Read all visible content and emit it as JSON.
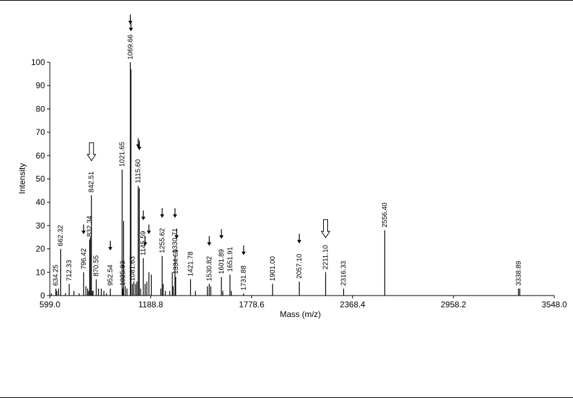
{
  "chart_data": {
    "type": "bar",
    "title": "",
    "xlabel": "Mass (m/z)",
    "ylabel": "Intensity",
    "xlim": [
      599.0,
      3548.0
    ],
    "ylim": [
      0,
      100
    ],
    "x_ticks": [
      "599.0",
      "1188.8",
      "1778.6",
      "2368.4",
      "2958.2",
      "3548.0"
    ],
    "y_ticks": [
      "0",
      "10",
      "20",
      "30",
      "40",
      "50",
      "60",
      "70",
      "80",
      "90",
      "100"
    ],
    "labeled_peaks": [
      {
        "mz": 634.25,
        "label": "634.25",
        "intensity": 3
      },
      {
        "mz": 662.32,
        "label": "662.32",
        "intensity": 20
      },
      {
        "mz": 712.33,
        "label": "712.33",
        "intensity": 5
      },
      {
        "mz": 796.42,
        "label": "796.42",
        "intensity": 10
      },
      {
        "mz": 832.34,
        "label": "832.34",
        "intensity": 24
      },
      {
        "mz": 842.51,
        "label": "842.51",
        "intensity": 43
      },
      {
        "mz": 870.55,
        "label": "870.55",
        "intensity": 7
      },
      {
        "mz": 952.54,
        "label": "952.54",
        "intensity": 3
      },
      {
        "mz": 1021.65,
        "label": "1021.65",
        "intensity": 54
      },
      {
        "mz": 1025.93,
        "label": "1025.93",
        "intensity": 3
      },
      {
        "mz": 1069.66,
        "label": "1069.66",
        "intensity": 100
      },
      {
        "mz": 1081.63,
        "label": "1081.63",
        "intensity": 5
      },
      {
        "mz": 1115.6,
        "label": "1115.60",
        "intensity": 47
      },
      {
        "mz": 1145.59,
        "label": "1145.59",
        "intensity": 16
      },
      {
        "mz": 1255.62,
        "label": "1255.62",
        "intensity": 17
      },
      {
        "mz": 1330.71,
        "label": "1330.71",
        "intensity": 17
      },
      {
        "mz": 1334.69,
        "label": "1334.69",
        "intensity": 8
      },
      {
        "mz": 1421.78,
        "label": "1421.78",
        "intensity": 7
      },
      {
        "mz": 1530.82,
        "label": "1530.82",
        "intensity": 5
      },
      {
        "mz": 1601.89,
        "label": "1601.89",
        "intensity": 8
      },
      {
        "mz": 1651.91,
        "label": "1651.91",
        "intensity": 9
      },
      {
        "mz": 1731.88,
        "label": "1731.88",
        "intensity": 1
      },
      {
        "mz": 1901.0,
        "label": "1901.00",
        "intensity": 5
      },
      {
        "mz": 2057.1,
        "label": "2057.10",
        "intensity": 6
      },
      {
        "mz": 2211.1,
        "label": "2211.10",
        "intensity": 10
      },
      {
        "mz": 2316.33,
        "label": "2316.33",
        "intensity": 3
      },
      {
        "mz": 2556.4,
        "label": "2556.40",
        "intensity": 28
      },
      {
        "mz": 3338.89,
        "label": "3338.89",
        "intensity": 3
      }
    ],
    "unlabeled_peaks": [
      {
        "mz": 608,
        "intensity": 1
      },
      {
        "mz": 640,
        "intensity": 2
      },
      {
        "mz": 650,
        "intensity": 3
      },
      {
        "mz": 690,
        "intensity": 1
      },
      {
        "mz": 740,
        "intensity": 2
      },
      {
        "mz": 770,
        "intensity": 1
      },
      {
        "mz": 810,
        "intensity": 4
      },
      {
        "mz": 820,
        "intensity": 3
      },
      {
        "mz": 826,
        "intensity": 2
      },
      {
        "mz": 836,
        "intensity": 25
      },
      {
        "mz": 846,
        "intensity": 2
      },
      {
        "mz": 852,
        "intensity": 2
      },
      {
        "mz": 884,
        "intensity": 3
      },
      {
        "mz": 900,
        "intensity": 3
      },
      {
        "mz": 915,
        "intensity": 2
      },
      {
        "mz": 930,
        "intensity": 1
      },
      {
        "mz": 1030,
        "intensity": 32
      },
      {
        "mz": 1040,
        "intensity": 4
      },
      {
        "mz": 1050,
        "intensity": 3
      },
      {
        "mz": 1073,
        "intensity": 97
      },
      {
        "mz": 1090,
        "intensity": 6
      },
      {
        "mz": 1100,
        "intensity": 5
      },
      {
        "mz": 1108,
        "intensity": 6
      },
      {
        "mz": 1122,
        "intensity": 46
      },
      {
        "mz": 1130,
        "intensity": 3
      },
      {
        "mz": 1156,
        "intensity": 5
      },
      {
        "mz": 1166,
        "intensity": 6
      },
      {
        "mz": 1178,
        "intensity": 10
      },
      {
        "mz": 1192,
        "intensity": 9
      },
      {
        "mz": 1248,
        "intensity": 3
      },
      {
        "mz": 1262,
        "intensity": 5
      },
      {
        "mz": 1275,
        "intensity": 2
      },
      {
        "mz": 1300,
        "intensity": 2
      },
      {
        "mz": 1315,
        "intensity": 10
      },
      {
        "mz": 1320,
        "intensity": 4
      },
      {
        "mz": 1450,
        "intensity": 2
      },
      {
        "mz": 1520,
        "intensity": 4
      },
      {
        "mz": 1540,
        "intensity": 4
      },
      {
        "mz": 1610,
        "intensity": 2
      },
      {
        "mz": 1660,
        "intensity": 2
      },
      {
        "mz": 3346,
        "intensity": 3
      }
    ],
    "filled_arrow_markers": [
      796.42,
      952.54,
      1069.66,
      1073,
      1115.6,
      1122,
      1145.59,
      1156,
      1178,
      1255.62,
      1330.71,
      1340,
      1530.82,
      1601.89,
      1731.88,
      2057.1
    ],
    "open_arrow_markers": [
      842.51,
      2211.1
    ]
  }
}
